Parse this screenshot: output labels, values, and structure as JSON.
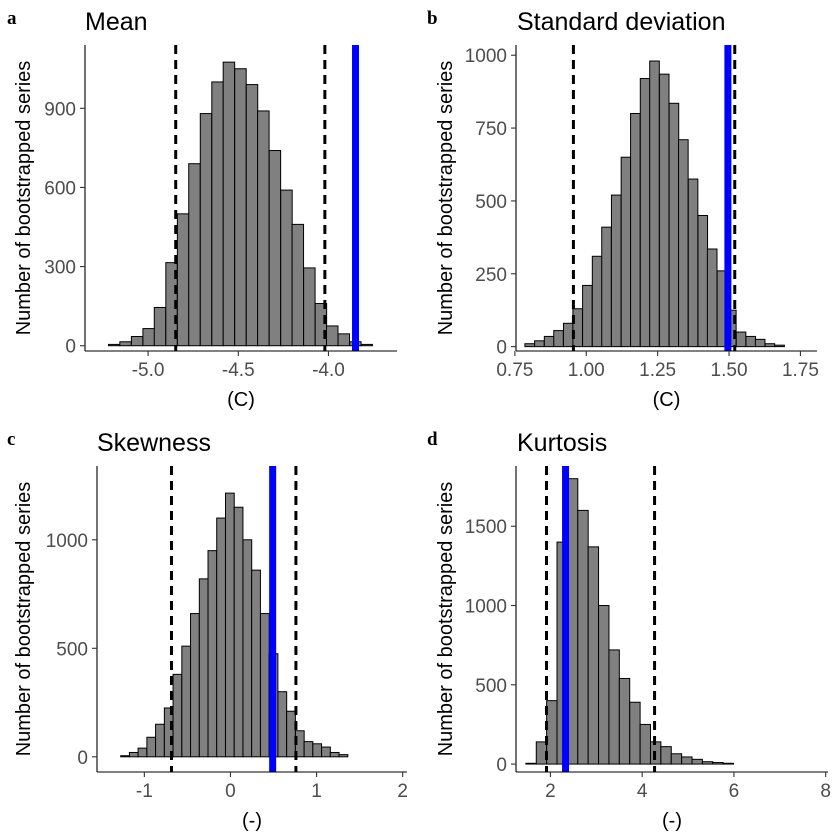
{
  "colors": {
    "observed": "#0000FF",
    "bars": "#808080",
    "bar_outline": "#000000",
    "ci": "#000000"
  },
  "chart_data": [
    {
      "type": "bar",
      "panel": "a",
      "title": "Mean",
      "xlabel": "(C)",
      "ylabel": "Number of bootstrapped series",
      "xlim": [
        -5.35,
        -3.62
      ],
      "ylim": [
        -20,
        1140
      ],
      "xticks": [
        -5.0,
        -4.5,
        -4.0
      ],
      "xtick_labels": [
        "-5.0",
        "-4.5",
        "-4.0"
      ],
      "yticks": [
        0,
        300,
        600,
        900
      ],
      "bin_width": 0.0636,
      "bin_centers": [
        -5.252,
        -5.188,
        -5.125,
        -5.061,
        -4.997,
        -4.934,
        -4.87,
        -4.806,
        -4.743,
        -4.679,
        -4.615,
        -4.552,
        -4.488,
        -4.424,
        -4.361,
        -4.297,
        -4.233,
        -4.17,
        -4.106,
        -4.042,
        -3.979,
        -3.915,
        -3.851,
        -3.788
      ],
      "values": [
        0,
        5,
        15,
        35,
        65,
        145,
        315,
        500,
        690,
        880,
        1000,
        1075,
        1050,
        990,
        890,
        740,
        590,
        460,
        295,
        160,
        75,
        45,
        15,
        5
      ],
      "ci_lines": [
        -4.847,
        -4.02
      ],
      "observed": -3.85,
      "grid": false,
      "legend": "none"
    },
    {
      "type": "bar",
      "panel": "b",
      "title": "Standard deviation",
      "xlabel": "(C)",
      "ylabel": "Number of bootstrapped series",
      "xlim": [
        0.754,
        1.808
      ],
      "ylim": [
        -15,
        1035
      ],
      "xticks": [
        0.75,
        1.0,
        1.25,
        1.5,
        1.75
      ],
      "xtick_labels": [
        "0.75",
        "1.00",
        "1.25",
        "1.50",
        "1.75"
      ],
      "yticks": [
        0,
        250,
        500,
        750,
        1000
      ],
      "bin_width": 0.0336,
      "bin_centers": [
        0.802,
        0.836,
        0.87,
        0.903,
        0.937,
        0.97,
        1.004,
        1.038,
        1.071,
        1.105,
        1.139,
        1.172,
        1.206,
        1.239,
        1.273,
        1.307,
        1.34,
        1.374,
        1.408,
        1.441,
        1.475,
        1.508,
        1.542,
        1.576,
        1.609,
        1.643,
        1.677,
        1.71
      ],
      "values": [
        10,
        20,
        35,
        55,
        80,
        130,
        210,
        310,
        410,
        520,
        650,
        800,
        920,
        980,
        935,
        835,
        710,
        575,
        450,
        335,
        260,
        125,
        50,
        35,
        25,
        10,
        5,
        0
      ],
      "ci_lines": [
        0.955,
        1.52
      ],
      "observed": 1.496,
      "grid": false,
      "legend": "none"
    },
    {
      "type": "bar",
      "panel": "c",
      "title": "Skewness",
      "xlabel": "(-)",
      "ylabel": "Number of bootstrapped series",
      "xlim": [
        -1.55,
        2.05
      ],
      "ylim": [
        -70,
        1340
      ],
      "xticks": [
        -1,
        0,
        1,
        2
      ],
      "xtick_labels": [
        "-1",
        "0",
        "1",
        "2"
      ],
      "yticks": [
        0,
        500,
        1000
      ],
      "bin_width": 0.1015,
      "bin_centers": [
        -1.224,
        -1.123,
        -1.022,
        -0.92,
        -0.819,
        -0.717,
        -0.616,
        -0.514,
        -0.413,
        -0.311,
        -0.21,
        -0.109,
        -0.007,
        0.094,
        0.196,
        0.297,
        0.399,
        0.5,
        0.602,
        0.703,
        0.805,
        0.906,
        1.007,
        1.109,
        1.21,
        1.312,
        1.413,
        1.515,
        1.616,
        1.718,
        1.819
      ],
      "values": [
        5,
        20,
        40,
        90,
        150,
        225,
        380,
        510,
        660,
        820,
        950,
        1100,
        1215,
        1150,
        1000,
        860,
        660,
        475,
        300,
        210,
        120,
        70,
        60,
        45,
        20,
        10,
        0,
        0,
        0,
        0,
        0
      ],
      "ci_lines": [
        -0.685,
        0.76
      ],
      "observed": 0.49,
      "grid": false,
      "legend": "none"
    },
    {
      "type": "bar",
      "panel": "d",
      "title": "Kurtosis",
      "xlabel": "(-)",
      "ylabel": "Number of bootstrapped series",
      "xlim": [
        1.25,
        8.05
      ],
      "ylim": [
        -50,
        1880
      ],
      "xticks": [
        2,
        4,
        6,
        8
      ],
      "xtick_labels": [
        "2",
        "4",
        "6",
        "8"
      ],
      "yticks": [
        0,
        500,
        1000,
        1500
      ],
      "bin_width": 0.2263,
      "bin_centers": [
        1.579,
        1.805,
        2.031,
        2.257,
        2.484,
        2.71,
        2.936,
        3.163,
        3.389,
        3.615,
        3.842,
        4.068,
        4.294,
        4.521,
        4.747,
        4.973,
        5.199,
        5.426,
        5.652,
        5.878,
        6.105,
        6.331,
        6.557,
        6.784,
        7.01,
        7.236,
        7.463,
        7.689
      ],
      "values": [
        5,
        140,
        400,
        1400,
        1800,
        1600,
        1370,
        1000,
        720,
        540,
        390,
        250,
        140,
        110,
        65,
        45,
        30,
        15,
        10,
        5,
        0,
        0,
        0,
        0,
        0,
        0,
        0,
        0
      ],
      "ci_lines": [
        1.915,
        4.27
      ],
      "observed": 2.33,
      "grid": false,
      "legend": "none"
    }
  ]
}
